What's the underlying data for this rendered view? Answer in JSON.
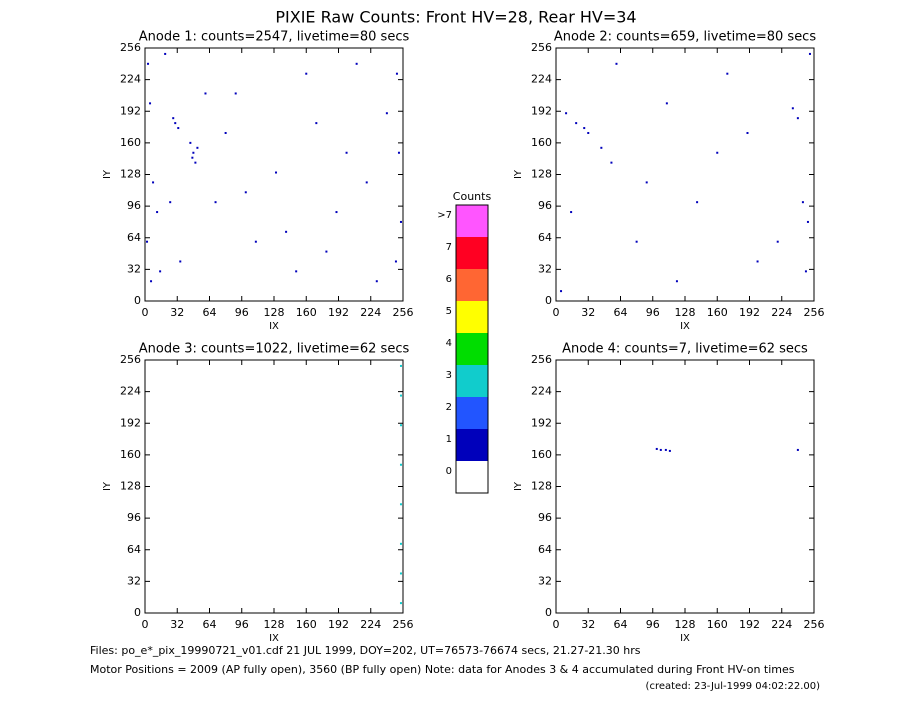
{
  "title": "PIXIE Raw Counts:  Front HV=28, Rear HV=34",
  "chart_data": [
    {
      "type": "scatter",
      "title": "Anode 1: counts=2547, livetime=80 secs",
      "x_label": "IX",
      "y_label": "IY",
      "xlim": [
        0,
        256
      ],
      "ylim": [
        0,
        256
      ],
      "xticks": [
        0,
        32,
        64,
        96,
        128,
        160,
        192,
        224,
        256
      ],
      "yticks": [
        0,
        32,
        64,
        96,
        128,
        160,
        192,
        224,
        256
      ],
      "series": [
        {
          "color": "#0000bb",
          "x": [
            3,
            5,
            8,
            2,
            6,
            30,
            33,
            28,
            45,
            48,
            50,
            52,
            47,
            70,
            90,
            110,
            130,
            150,
            170,
            190,
            210,
            230,
            250,
            252,
            254,
            249,
            12,
            15,
            20,
            60,
            80,
            100,
            140,
            160,
            180,
            200,
            220,
            240,
            25,
            35
          ],
          "values": [
            240,
            200,
            120,
            60,
            20,
            180,
            175,
            185,
            160,
            150,
            140,
            155,
            145,
            100,
            210,
            60,
            130,
            30,
            180,
            90,
            240,
            20,
            230,
            150,
            80,
            40,
            90,
            30,
            250,
            210,
            170,
            110,
            70,
            230,
            50,
            150,
            120,
            190,
            100,
            40
          ]
        }
      ]
    },
    {
      "type": "scatter",
      "title": "Anode 2: counts=659, livetime=80 secs",
      "x_label": "IX",
      "y_label": "IY",
      "xlim": [
        0,
        256
      ],
      "ylim": [
        0,
        256
      ],
      "xticks": [
        0,
        32,
        64,
        96,
        128,
        160,
        192,
        224,
        256
      ],
      "yticks": [
        0,
        32,
        64,
        96,
        128,
        160,
        192,
        224,
        256
      ],
      "series": [
        {
          "color": "#0000bb",
          "x": [
            10,
            20,
            28,
            32,
            45,
            55,
            80,
            110,
            140,
            170,
            200,
            235,
            240,
            245,
            250,
            252,
            248,
            120,
            160,
            60,
            90,
            190,
            220,
            15,
            5
          ],
          "values": [
            190,
            180,
            175,
            170,
            155,
            140,
            60,
            200,
            100,
            230,
            40,
            195,
            185,
            100,
            80,
            250,
            30,
            20,
            150,
            240,
            120,
            170,
            60,
            90,
            10
          ]
        }
      ]
    },
    {
      "type": "scatter",
      "title": "Anode 3: counts=1022, livetime=62 secs",
      "x_label": "IX",
      "y_label": "IY",
      "xlim": [
        0,
        256
      ],
      "ylim": [
        0,
        256
      ],
      "xticks": [
        0,
        32,
        64,
        96,
        128,
        160,
        192,
        224,
        256
      ],
      "yticks": [
        0,
        32,
        64,
        96,
        128,
        160,
        192,
        224,
        256
      ],
      "series": [
        {
          "color": "#11cccc",
          "x": [
            254,
            254,
            254,
            254,
            254,
            254,
            254,
            254
          ],
          "values": [
            250,
            220,
            190,
            150,
            110,
            70,
            40,
            10
          ]
        }
      ]
    },
    {
      "type": "scatter",
      "title": "Anode 4: counts=7, livetime=62 secs",
      "x_label": "IX",
      "y_label": "IY",
      "xlim": [
        0,
        256
      ],
      "ylim": [
        0,
        256
      ],
      "xticks": [
        0,
        32,
        64,
        96,
        128,
        160,
        192,
        224,
        256
      ],
      "yticks": [
        0,
        32,
        64,
        96,
        128,
        160,
        192,
        224,
        256
      ],
      "series": [
        {
          "color": "#0000bb",
          "x": [
            100,
            104,
            109,
            113,
            240
          ],
          "values": [
            166,
            165,
            165,
            164,
            165
          ]
        }
      ]
    }
  ],
  "colorbar": {
    "title": "Counts",
    "categories": [
      "0",
      "1",
      "2",
      "3",
      "4",
      "5",
      "6",
      "7",
      ">7"
    ],
    "colors": [
      "#ffffff",
      "#0000bb",
      "#2255ff",
      "#11cccc",
      "#00dd00",
      "#ffff00",
      "#ff6633",
      "#ff0022",
      "#ff55ff"
    ]
  },
  "footer": [
    "Files: po_e*_pix_19990721_v01.cdf    21 JUL 1999, DOY=202, UT=76573-76674 secs, 21.27-21.30 hrs",
    "Motor Positions = 2009 (AP fully open), 3560 (BP fully open)    Note: data for Anodes 3 & 4 accumulated during Front HV-on times",
    "(created: 23-Jul-1999 04:02:22.00)"
  ]
}
